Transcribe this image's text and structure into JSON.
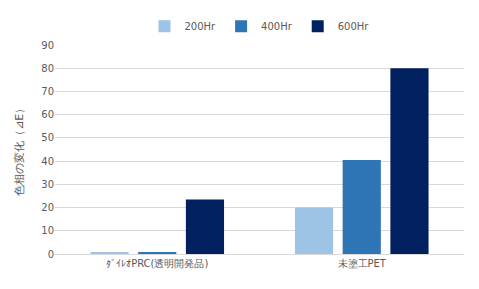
{
  "chart_data": {
    "type": "bar",
    "categories": [
      "ﾀﾞｲﾚｵPRC(透明開発品)",
      "未塗工PET"
    ],
    "series": [
      {
        "name": "200Hr",
        "color": "#9dc3e6",
        "values": [
          0.5,
          20
        ]
      },
      {
        "name": "400Hr",
        "color": "#2e75b6",
        "values": [
          0.7,
          40.5
        ]
      },
      {
        "name": "600Hr",
        "color": "#002060",
        "values": [
          23.5,
          80
        ]
      }
    ],
    "y_label": "色相の変化（⊿E）",
    "ylim": [
      0,
      90
    ],
    "yticks": [
      0,
      10,
      20,
      30,
      40,
      50,
      60,
      70,
      80,
      90
    ],
    "grid": true,
    "legend": "top"
  }
}
